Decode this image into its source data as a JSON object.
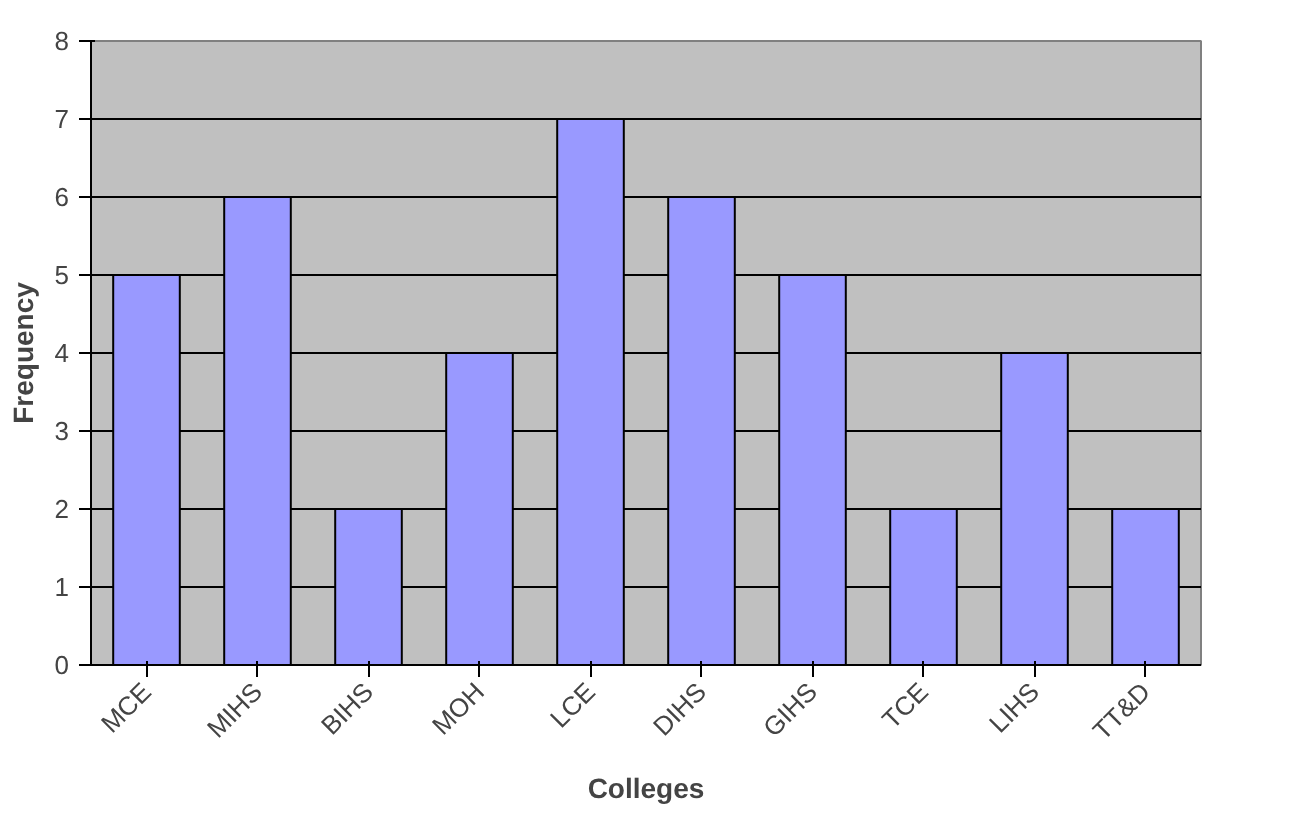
{
  "chart_data": {
    "type": "bar",
    "xlabel": "Colleges",
    "ylabel": "Frequency",
    "categories": [
      "MCE",
      "MIHS",
      "BIHS",
      "MOH",
      "LCE",
      "DIHS",
      "GIHS",
      "TCE",
      "LIHS",
      "TT&D"
    ],
    "values": [
      5,
      6,
      2,
      4,
      7,
      6,
      5,
      2,
      4,
      2
    ],
    "color": "#9999ff",
    "ylim": [
      0,
      8
    ],
    "yticks": [
      0,
      1,
      2,
      3,
      4,
      5,
      6,
      7,
      8
    ],
    "grid": "y"
  }
}
